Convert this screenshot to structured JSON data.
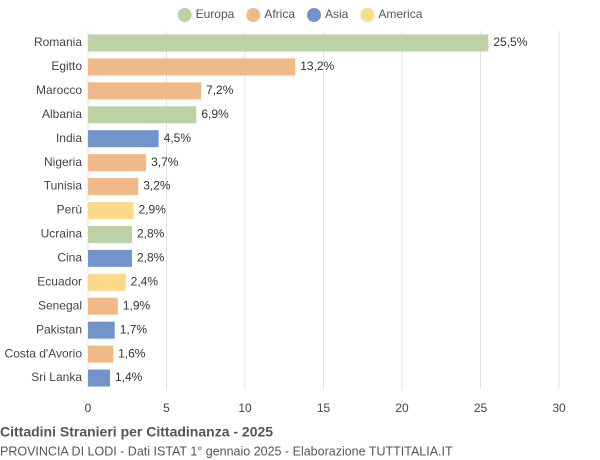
{
  "chart_data": {
    "type": "bar",
    "orientation": "horizontal",
    "title": "Cittadini Stranieri per Cittadinanza - 2025",
    "subtitle": "PROVINCIA DI LODI - Dati ISTAT 1° gennaio 2025 - Elaborazione TUTTITALIA.IT",
    "categories": [
      "Romania",
      "Egitto",
      "Marocco",
      "Albania",
      "India",
      "Nigeria",
      "Tunisia",
      "Perù",
      "Ucraina",
      "Cina",
      "Ecuador",
      "Senegal",
      "Pakistan",
      "Costa d'Avorio",
      "Sri Lanka"
    ],
    "series": [
      {
        "name": "Europa",
        "color": "#bcd1a4",
        "values": [
          25.5,
          null,
          null,
          6.9,
          null,
          null,
          null,
          null,
          2.8,
          null,
          null,
          null,
          null,
          null,
          null
        ],
        "value_labels": [
          "25,5%",
          null,
          null,
          "6,9%",
          null,
          null,
          null,
          null,
          "2,8%",
          null,
          null,
          null,
          null,
          null,
          null
        ]
      },
      {
        "name": "Africa",
        "color": "#f0b988",
        "values": [
          null,
          13.2,
          7.2,
          null,
          null,
          3.7,
          3.2,
          null,
          null,
          null,
          null,
          1.9,
          null,
          1.6,
          null
        ],
        "value_labels": [
          null,
          "13,2%",
          "7,2%",
          null,
          null,
          "3,7%",
          "3,2%",
          null,
          null,
          null,
          null,
          "1,9%",
          null,
          "1,6%",
          null
        ]
      },
      {
        "name": "Asia",
        "color": "#7393cb",
        "values": [
          null,
          null,
          null,
          null,
          4.5,
          null,
          null,
          null,
          null,
          2.8,
          null,
          null,
          1.7,
          null,
          1.4
        ],
        "value_labels": [
          null,
          null,
          null,
          null,
          "4,5%",
          null,
          null,
          null,
          null,
          "2,8%",
          null,
          null,
          "1,7%",
          null,
          "1,4%"
        ]
      },
      {
        "name": "America",
        "color": "#fdd98b",
        "values": [
          null,
          null,
          null,
          null,
          null,
          null,
          null,
          2.9,
          null,
          null,
          2.4,
          null,
          null,
          null,
          null
        ],
        "value_labels": [
          null,
          null,
          null,
          null,
          null,
          null,
          null,
          "2,9%",
          null,
          null,
          "2,4%",
          null,
          null,
          null,
          null
        ]
      }
    ],
    "xlim": [
      0,
      30
    ],
    "xticks": [
      0,
      5,
      10,
      15,
      20,
      25,
      30
    ],
    "grid": true
  }
}
